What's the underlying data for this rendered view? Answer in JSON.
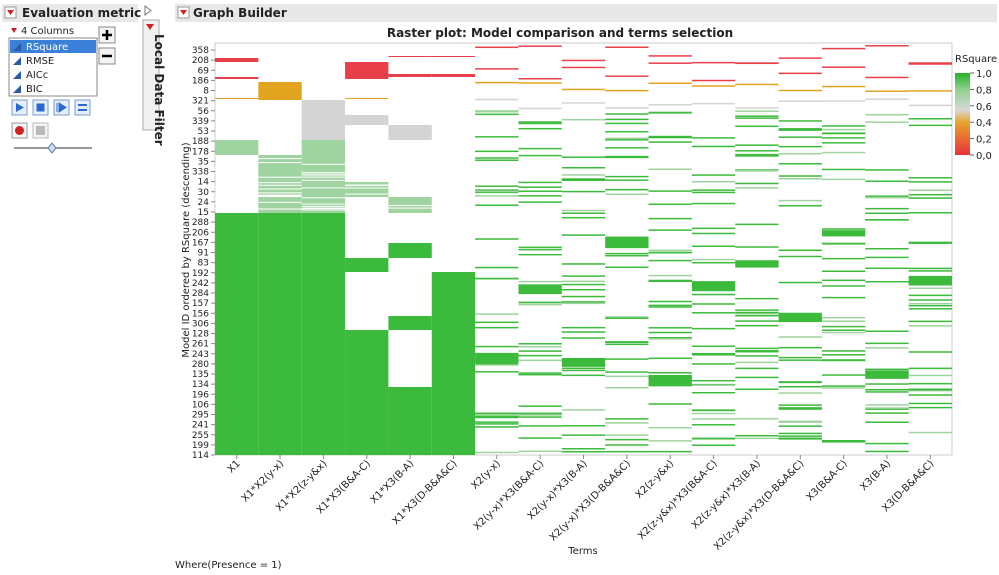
{
  "left_panel": {
    "title": "Evaluation metric",
    "columns_label": "4 Columns",
    "items": [
      "RSquare",
      "RMSE",
      "AICc",
      "BIC"
    ]
  },
  "filter_tab": {
    "label": "Local Data Filter"
  },
  "graph": {
    "header": "Graph Builder",
    "title": "Raster plot: Model comparison and terms selection",
    "y_axis_title": "Model ID ordered by RSquare (descending)",
    "y_labels": [
      "358",
      "208",
      "69",
      "186",
      "8",
      "321",
      "56",
      "339",
      "53",
      "188",
      "178",
      "35",
      "338",
      "14",
      "30",
      "24",
      "15",
      "288",
      "206",
      "167",
      "91",
      "83",
      "192",
      "242",
      "284",
      "157",
      "156",
      "306",
      "128",
      "261",
      "243",
      "280",
      "135",
      "134",
      "196",
      "106",
      "295",
      "241",
      "255",
      "199",
      "114"
    ],
    "x_axis_title": "Terms",
    "x_labels": [
      "X1",
      "X1*X2(y-x)",
      "X1*X2(z-y&x)",
      "X1*X3(B&A-C)",
      "X1*X3(B-A)",
      "X1*X3(D-B&A&C)",
      "X2(y-x)",
      "X2(y-x)*X3(B&A-C)",
      "X2(y-x)*X3(B-A)",
      "X2(y-x)*X3(D-B&A&C)",
      "X2(z-y&x)",
      "X2(z-y&x)*X3(B&A-C)",
      "X2(z-y&x)*X3(B-A)",
      "X2(z-y&x)*X3(D-B&A&C)",
      "X3(B&A-C)",
      "X3(B-A)",
      "X3(D-B&A&C)"
    ],
    "legend": {
      "title": "RSquare",
      "lim": [
        0,
        1
      ],
      "ticks": [
        {
          "value": 1,
          "label": "1,0"
        },
        {
          "value": 0.8,
          "label": "0,8"
        },
        {
          "value": 0.6,
          "label": "0,6"
        },
        {
          "value": 0.4,
          "label": "0,4"
        },
        {
          "value": 0.2,
          "label": "0,2"
        },
        {
          "value": 0,
          "label": "0,0"
        }
      ]
    },
    "footer": "Where(Presence = 1)"
  }
}
